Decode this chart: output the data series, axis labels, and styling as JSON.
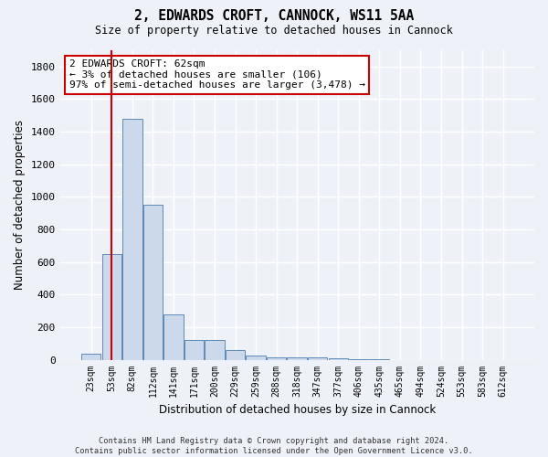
{
  "title": "2, EDWARDS CROFT, CANNOCK, WS11 5AA",
  "subtitle": "Size of property relative to detached houses in Cannock",
  "xlabel": "Distribution of detached houses by size in Cannock",
  "ylabel": "Number of detached properties",
  "bar_labels": [
    "23sqm",
    "53sqm",
    "82sqm",
    "112sqm",
    "141sqm",
    "171sqm",
    "200sqm",
    "229sqm",
    "259sqm",
    "288sqm",
    "318sqm",
    "347sqm",
    "377sqm",
    "406sqm",
    "435sqm",
    "465sqm",
    "494sqm",
    "524sqm",
    "553sqm",
    "583sqm",
    "612sqm"
  ],
  "bar_values": [
    35,
    650,
    1480,
    950,
    280,
    120,
    120,
    60,
    25,
    15,
    15,
    15,
    10,
    5,
    5,
    0,
    0,
    0,
    0,
    0,
    0
  ],
  "bar_color": "#ccd9ea",
  "bar_edge_color": "#5b8ab8",
  "vline_x": 1.0,
  "vline_color": "#cc0000",
  "annotation_text": "2 EDWARDS CROFT: 62sqm\n← 3% of detached houses are smaller (106)\n97% of semi-detached houses are larger (3,478) →",
  "annotation_box_color": "#ffffff",
  "annotation_box_edge": "#cc0000",
  "ylim": [
    0,
    1900
  ],
  "yticks": [
    0,
    200,
    400,
    600,
    800,
    1000,
    1200,
    1400,
    1600,
    1800
  ],
  "footnote": "Contains HM Land Registry data © Crown copyright and database right 2024.\nContains public sector information licensed under the Open Government Licence v3.0.",
  "bg_color": "#eef2f8",
  "plot_bg_color": "#eef2f8",
  "grid_color": "#ffffff"
}
